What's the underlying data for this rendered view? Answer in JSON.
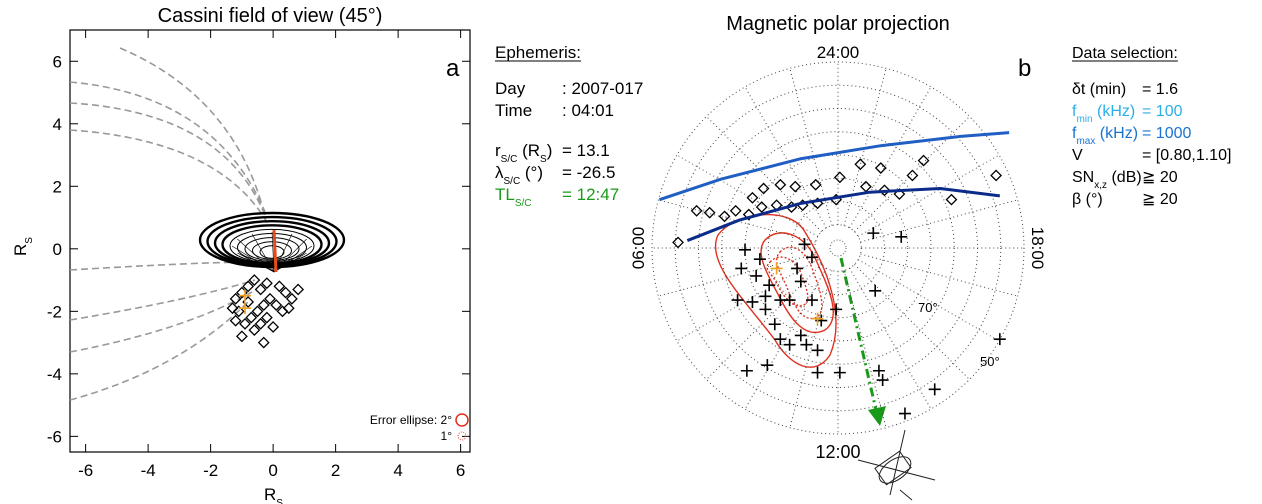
{
  "chart_data": [
    {
      "type": "scatter",
      "title": "Cassini field of view (45°)",
      "panel_label": "a",
      "xlabel": [
        {
          "t": "R"
        },
        {
          "t": "S",
          "sub": true
        }
      ],
      "ylabel": [
        {
          "t": "R"
        },
        {
          "t": "S",
          "sub": true
        }
      ],
      "xlim": [
        -6.5,
        6.3
      ],
      "ylim": [
        -6.5,
        7.0
      ],
      "xticks": [
        -6,
        -4,
        -2,
        0,
        2,
        4,
        6
      ],
      "yticks": [
        -6,
        -4,
        -2,
        0,
        2,
        4,
        6
      ],
      "series": [
        {
          "color": "#000000",
          "marker": "diamond",
          "x": [
            -1.2,
            -1.0,
            -0.8,
            -0.6,
            -0.4,
            -0.2,
            0.2,
            0.4,
            0.6,
            0.3,
            0.1,
            -0.1,
            -0.3,
            -0.5,
            -0.7,
            -0.9,
            -1.1,
            -1.3,
            -0.6,
            -0.4,
            -0.2,
            0.0,
            -0.8,
            -1.0,
            -0.3,
            0.5,
            -1.2,
            0.8
          ],
          "y": [
            -1.6,
            -1.4,
            -1.2,
            -1.0,
            -1.3,
            -1.1,
            -1.2,
            -1.4,
            -1.6,
            -2.0,
            -1.8,
            -1.6,
            -1.8,
            -2.0,
            -2.2,
            -2.4,
            -2.0,
            -1.9,
            -2.6,
            -2.4,
            -2.2,
            -2.5,
            -1.7,
            -2.8,
            -3.0,
            -1.9,
            -2.3,
            -1.3
          ]
        },
        {
          "color": "#f0a020",
          "marker": "plus",
          "x": [
            -0.9,
            -0.9
          ],
          "y": [
            -1.5,
            -1.9
          ]
        }
      ],
      "error_labels": [
        "Error ellipse: 2°",
        "1°"
      ]
    },
    {
      "type": "polar",
      "title": "Magnetic polar projection",
      "panel_label": "b",
      "xlim": [
        -1,
        1
      ],
      "ylim": [
        -1,
        1
      ],
      "lt_labels": [
        "24:00",
        "18:00",
        "12:00",
        "06:00"
      ],
      "lat_labels": [
        "70°",
        "50°"
      ],
      "series": [
        {
          "color": "#000000",
          "marker": "plus",
          "x": [
            -0.5,
            -0.42,
            -0.52,
            -0.44,
            -0.37,
            -0.54,
            -0.46,
            -0.39,
            -0.31,
            -0.26,
            -0.18,
            -0.14,
            -0.22,
            -0.2,
            -0.14,
            -0.09,
            -0.2,
            -0.26,
            -0.17,
            -0.11,
            -0.39,
            -0.34,
            -0.31,
            -0.11,
            -0.49,
            -0.38,
            0.01,
            0.22,
            0.24,
            0.36,
            0.52,
            0.87,
            0.2,
            0.19,
            0.34,
            -0.01
          ],
          "y": [
            -0.01,
            -0.06,
            -0.11,
            -0.15,
            -0.2,
            -0.28,
            -0.29,
            -0.26,
            -0.28,
            -0.28,
            0.02,
            -0.05,
            -0.11,
            -0.18,
            -0.28,
            -0.39,
            -0.47,
            -0.52,
            -0.52,
            -0.55,
            -0.33,
            -0.41,
            -0.49,
            -0.67,
            -0.66,
            -0.63,
            -0.67,
            -0.66,
            -0.71,
            -0.89,
            -0.76,
            -0.49,
            -0.23,
            0.08,
            0.06,
            -0.33
          ]
        },
        {
          "color": "#000000",
          "marker": "diamond",
          "x": [
            -0.86,
            -0.76,
            -0.69,
            -0.61,
            -0.55,
            -0.48,
            -0.41,
            -0.33,
            -0.25,
            -0.19,
            -0.11,
            -0.01,
            0.15,
            0.23,
            0.12,
            0.01,
            -0.12,
            -0.23,
            -0.31,
            -0.4,
            -0.46,
            0.25,
            0.33,
            0.4,
            0.61,
            0.85,
            0.46
          ],
          "y": [
            0.03,
            0.2,
            0.19,
            0.17,
            0.2,
            0.18,
            0.22,
            0.23,
            0.22,
            0.23,
            0.24,
            0.26,
            0.33,
            0.43,
            0.45,
            0.38,
            0.34,
            0.33,
            0.34,
            0.32,
            0.27,
            0.31,
            0.29,
            0.39,
            0.26,
            0.39,
            0.47
          ]
        },
        {
          "color": "#f0a020",
          "marker": "plus",
          "x": [
            -0.33,
            -0.11
          ],
          "y": [
            -0.11,
            -0.38
          ]
        },
        {
          "color": "#1f5fc4",
          "marker": "line",
          "x": [
            -0.96,
            -0.63,
            -0.2,
            0.23,
            0.66,
            0.92
          ],
          "y": [
            0.26,
            0.37,
            0.48,
            0.55,
            0.6,
            0.62
          ]
        },
        {
          "color": "#0b2b8a",
          "marker": "line",
          "x": [
            -0.81,
            -0.53,
            -0.2,
            0.17,
            0.55,
            0.87
          ],
          "y": [
            0.04,
            0.15,
            0.24,
            0.3,
            0.32,
            0.28
          ]
        }
      ]
    }
  ],
  "ephemeris": {
    "heading": "Ephemeris:",
    "lines": [
      {
        "label": [
          {
            "t": "Day"
          }
        ],
        "value": ": 2007-017"
      },
      {
        "label": [
          {
            "t": "Time"
          }
        ],
        "value": ": 04:01"
      },
      {
        "label": [
          {
            "t": "r"
          },
          {
            "t": "S/C",
            "sub": true
          },
          {
            "t": " (R"
          },
          {
            "t": "S",
            "sub": true
          },
          {
            "t": ")"
          }
        ],
        "value": "= 13.1"
      },
      {
        "label": [
          {
            "t": "λ"
          },
          {
            "t": "S/C",
            "sub": true
          },
          {
            "t": " (°)"
          }
        ],
        "value": "= -26.5"
      },
      {
        "label": [
          {
            "t": "TL"
          },
          {
            "t": "S/C",
            "sub": true
          }
        ],
        "value": "= 12:47",
        "color": "#1a9a1a"
      }
    ]
  },
  "data_selection": {
    "heading": "Data selection:",
    "lines": [
      {
        "label": [
          {
            "t": "δt (min)"
          }
        ],
        "value": "= 1.6"
      },
      {
        "label": [
          {
            "t": "f"
          },
          {
            "t": "min",
            "sub": true
          },
          {
            "t": " (kHz)"
          }
        ],
        "value": "= 100",
        "color": "#29aee8"
      },
      {
        "label": [
          {
            "t": "f"
          },
          {
            "t": "max",
            "sub": true
          },
          {
            "t": " (kHz)"
          }
        ],
        "value": "= 1000",
        "color": "#1a73d1"
      },
      {
        "label": [
          {
            "t": "V"
          }
        ],
        "value": "= [0.80,1.10]"
      },
      {
        "label": [
          {
            "t": "SN"
          },
          {
            "t": "x,z",
            "sub": true
          },
          {
            "t": " (dB)"
          }
        ],
        "value": "≧ 20"
      },
      {
        "label": [
          {
            "t": "β (°)"
          }
        ],
        "value": "≧ 20"
      }
    ]
  }
}
